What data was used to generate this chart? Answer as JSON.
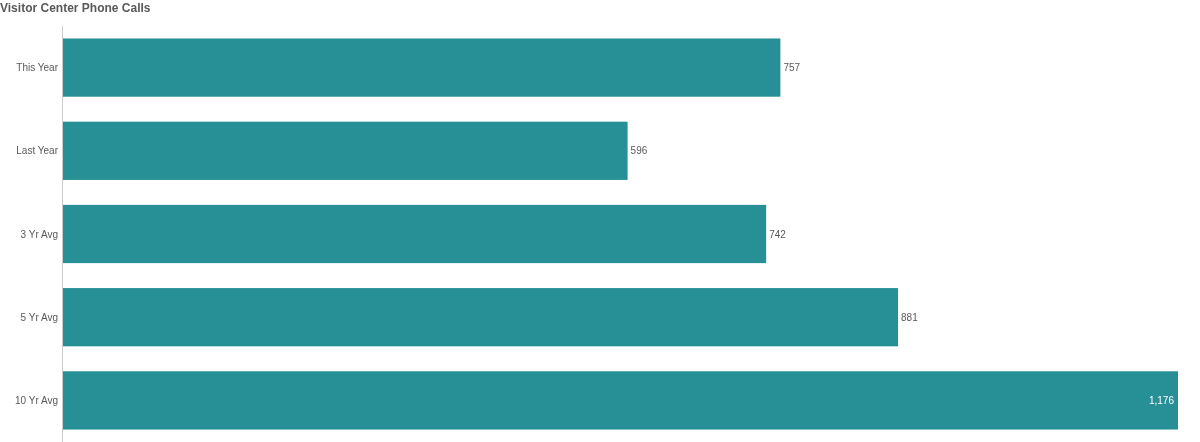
{
  "chart_data": {
    "type": "bar",
    "title": "Visitor Center Phone Calls",
    "orientation": "horizontal",
    "categories": [
      "This Year",
      "Last Year",
      "3 Yr Avg",
      "5 Yr Avg",
      "10 Yr Avg"
    ],
    "values": [
      757,
      596,
      742,
      881,
      1176
    ],
    "value_labels": [
      "757",
      "596",
      "742",
      "881",
      "1,176"
    ],
    "color": "#279096"
  }
}
